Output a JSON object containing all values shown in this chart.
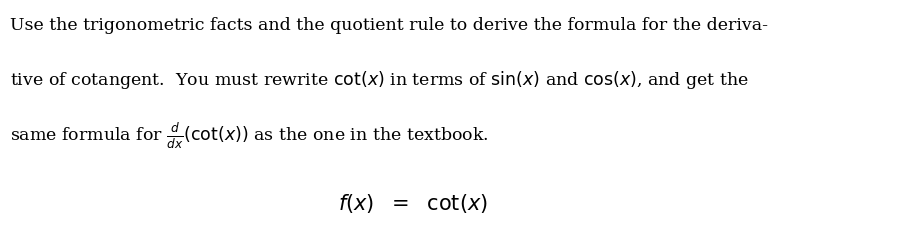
{
  "background_color": "#ffffff",
  "paragraph_lines": [
    "Use the trigonometric facts and the quotient rule to derive the formula for the deriva-",
    "tive of cotangent.  You must rewrite $\\cot(x)$ in terms of $\\sin(x)$ and $\\cos(x)$, and get the",
    "same formula for $\\frac{d}{dx}\\left(\\cot(x)\\right)$ as the one in the textbook."
  ],
  "equation": "$f(x)  =  \\cot(x)$",
  "text_color": "#000000",
  "fontsize_paragraph": 12.5,
  "fontsize_equation": 15,
  "fig_width": 8.97,
  "fig_height": 2.39
}
